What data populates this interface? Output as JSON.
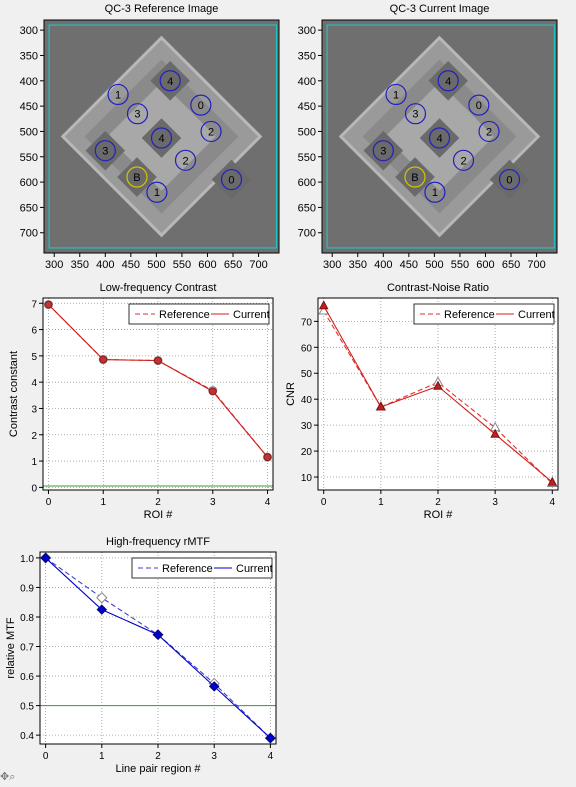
{
  "colors": {
    "reference_red": "#e03030",
    "current_red": "#d02020",
    "reference_blue": "#4040d0",
    "current_blue": "#0000c8",
    "baseline": "#3a9a3a",
    "roi": "#2020c0",
    "roi_b": "#d4c400",
    "bbox": "#22c0c0"
  },
  "images": [
    {
      "title": "QC-3 Reference Image",
      "xticks": [
        300,
        350,
        400,
        450,
        500,
        550,
        600,
        650,
        700
      ],
      "yticks": [
        300,
        350,
        400,
        450,
        500,
        550,
        600,
        650,
        700
      ],
      "xlim": [
        280,
        740
      ],
      "ylim": [
        280,
        740
      ],
      "rois": [
        {
          "label": "1",
          "x": 425,
          "y": 427
        },
        {
          "label": "4",
          "x": 527,
          "y": 400
        },
        {
          "label": "3",
          "x": 463,
          "y": 465
        },
        {
          "label": "0",
          "x": 587,
          "y": 448
        },
        {
          "label": "3",
          "x": 400,
          "y": 538
        },
        {
          "label": "4",
          "x": 510,
          "y": 513
        },
        {
          "label": "2",
          "x": 607,
          "y": 500
        },
        {
          "label": "2",
          "x": 557,
          "y": 557
        },
        {
          "label": "B",
          "x": 462,
          "y": 590
        },
        {
          "label": "1",
          "x": 501,
          "y": 620
        },
        {
          "label": "0",
          "x": 647,
          "y": 595
        }
      ]
    },
    {
      "title": "QC-3 Current Image",
      "xticks": [
        300,
        350,
        400,
        450,
        500,
        550,
        600,
        650,
        700
      ],
      "yticks": [
        300,
        350,
        400,
        450,
        500,
        550,
        600,
        650,
        700
      ],
      "xlim": [
        280,
        740
      ],
      "ylim": [
        280,
        740
      ],
      "rois": [
        {
          "label": "1",
          "x": 425,
          "y": 427
        },
        {
          "label": "4",
          "x": 527,
          "y": 400
        },
        {
          "label": "3",
          "x": 463,
          "y": 465
        },
        {
          "label": "0",
          "x": 587,
          "y": 448
        },
        {
          "label": "3",
          "x": 400,
          "y": 538
        },
        {
          "label": "4",
          "x": 510,
          "y": 513
        },
        {
          "label": "2",
          "x": 607,
          "y": 500
        },
        {
          "label": "2",
          "x": 557,
          "y": 557
        },
        {
          "label": "B",
          "x": 462,
          "y": 590
        },
        {
          "label": "1",
          "x": 501,
          "y": 620
        },
        {
          "label": "0",
          "x": 647,
          "y": 595
        }
      ]
    }
  ],
  "chart_data": [
    {
      "type": "line",
      "title": "Low-frequency Contrast",
      "xlabel": "ROI #",
      "ylabel": "Contrast constant",
      "x": [
        0,
        1,
        2,
        3,
        4
      ],
      "xlim": [
        -0.1,
        4.1
      ],
      "ylim": [
        -0.1,
        7.2
      ],
      "yticks": [
        0,
        1,
        2,
        3,
        4,
        5,
        6,
        7
      ],
      "grid": true,
      "legend": "top-right",
      "baseline": 0.05,
      "series": [
        {
          "name": "Reference",
          "style": "dashed",
          "values": [
            6.95,
            4.86,
            4.82,
            3.68,
            1.15
          ]
        },
        {
          "name": "Current",
          "style": "solid",
          "values": [
            6.95,
            4.86,
            4.82,
            3.65,
            1.15
          ]
        }
      ]
    },
    {
      "type": "line",
      "title": "Contrast-Noise Ratio",
      "xlabel": "ROI #",
      "ylabel": "CNR",
      "x": [
        0,
        1,
        2,
        3,
        4
      ],
      "xlim": [
        -0.1,
        4.1
      ],
      "ylim": [
        5,
        79
      ],
      "yticks": [
        10,
        20,
        30,
        40,
        50,
        60,
        70
      ],
      "grid": true,
      "legend": "top-right",
      "series": [
        {
          "name": "Reference",
          "style": "dashed",
          "values": [
            74,
            37,
            46.5,
            29,
            7.5
          ]
        },
        {
          "name": "Current",
          "style": "solid",
          "values": [
            76,
            37,
            45,
            26.5,
            8
          ]
        }
      ]
    },
    {
      "type": "line",
      "title": "High-frequency rMTF",
      "xlabel": "Line pair region #",
      "ylabel": "relative MTF",
      "x": [
        0,
        1,
        2,
        3,
        4
      ],
      "xlim": [
        -0.1,
        4.1
      ],
      "ylim": [
        0.37,
        1.02
      ],
      "yticks": [
        0.4,
        0.5,
        0.6,
        0.7,
        0.8,
        0.9,
        1.0
      ],
      "ytick_labels": [
        "0.4",
        "0.5",
        "0.6",
        "0.7",
        "0.8",
        "0.9",
        "1.0"
      ],
      "grid": true,
      "legend": "top-right",
      "baseline": 0.5,
      "series": [
        {
          "name": "Reference",
          "style": "dashed",
          "values": [
            1.0,
            0.865,
            0.74,
            0.575,
            0.39
          ]
        },
        {
          "name": "Current",
          "style": "solid",
          "values": [
            1.0,
            0.825,
            0.74,
            0.565,
            0.39
          ]
        }
      ]
    }
  ],
  "toolbar": {
    "pan_zoom_icon": "pan-zoom-icon"
  }
}
